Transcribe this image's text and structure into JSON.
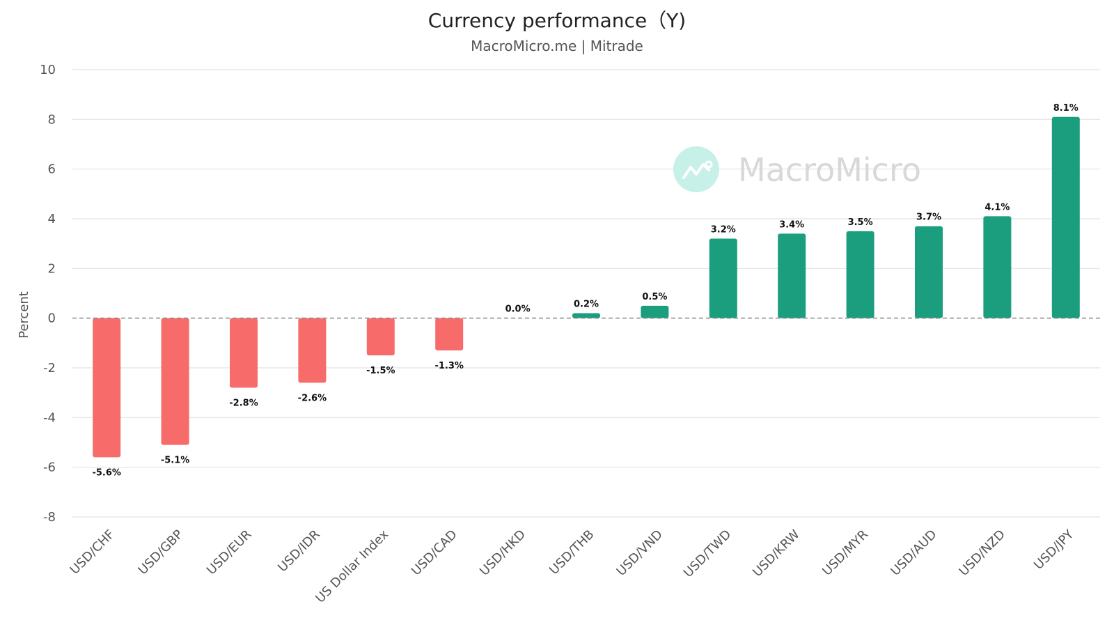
{
  "chart_data": {
    "type": "bar",
    "title": "Currency performance（Y)",
    "subtitle": "MacroMicro.me | Mitrade",
    "ylabel": "Percent",
    "xlabel": "",
    "ylim": [
      -8,
      10
    ],
    "yticks": [
      10,
      8,
      6,
      4,
      2,
      0,
      -2,
      -4,
      -6,
      -8
    ],
    "grid": true,
    "legend": "none",
    "categories": [
      "USD/CHF",
      "USD/GBP",
      "USD/EUR",
      "USD/IDR",
      "US Dollar Index",
      "USD/CAD",
      "USD/HKD",
      "USD/THB",
      "USD/VND",
      "USD/TWD",
      "USD/KRW",
      "USD/MYR",
      "USD/AUD",
      "USD/NZD",
      "USD/JPY"
    ],
    "values": [
      -5.6,
      -5.1,
      -2.8,
      -2.6,
      -1.5,
      -1.3,
      0.0,
      0.2,
      0.5,
      3.2,
      3.4,
      3.5,
      3.7,
      4.1,
      8.1
    ],
    "data_labels": [
      "-5.6%",
      "-5.1%",
      "-2.8%",
      "-2.6%",
      "-1.5%",
      "-1.3%",
      "0.0%",
      "0.2%",
      "0.5%",
      "3.2%",
      "3.4%",
      "3.5%",
      "3.7%",
      "4.1%",
      "8.1%"
    ],
    "colors": {
      "positive": "#1a9e7d",
      "negative": "#f76b6b",
      "grid": "#e2e2e2",
      "zero_line": "#888888"
    },
    "watermark": {
      "text": "MacroMicro",
      "icon": "chart-trend-icon",
      "circle_color": "#c7f0e8"
    }
  }
}
